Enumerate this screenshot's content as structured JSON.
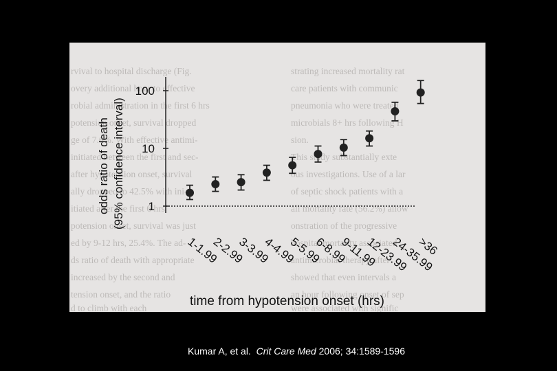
{
  "citation": {
    "authors": "Kumar A, et al.",
    "journal": "Crit Care Med",
    "details": "2006; 34:1589-1596"
  },
  "chart_data": {
    "type": "scatter",
    "subtype": "error-bar",
    "xlabel": "time from hypotension onset (hrs)",
    "ylabel": [
      "odds ratio of death",
      "(95% confidence interval)"
    ],
    "yscale": "log",
    "yticks": [
      1,
      10,
      100
    ],
    "reference_line": {
      "value": 1,
      "style": "dotted"
    },
    "categories": [
      "1-1.99",
      "2-2.99",
      "3-3.99",
      "4-4.99",
      "5-5.99",
      "6-8.99",
      "9-11.99",
      "12-23.99",
      "24-35.99",
      ">36"
    ],
    "values": [
      1.7,
      2.4,
      2.6,
      3.8,
      5.1,
      8.0,
      10.3,
      15.0,
      44.0,
      93.0
    ],
    "lower": [
      1.3,
      1.8,
      1.9,
      2.8,
      3.7,
      5.8,
      7.5,
      11.0,
      30.0,
      60.0
    ],
    "upper": [
      2.3,
      3.2,
      3.5,
      5.1,
      7.0,
      11.0,
      14.2,
      20.0,
      63.0,
      150.0
    ],
    "grid": false,
    "legend": "none",
    "marker_color": "#222222"
  }
}
